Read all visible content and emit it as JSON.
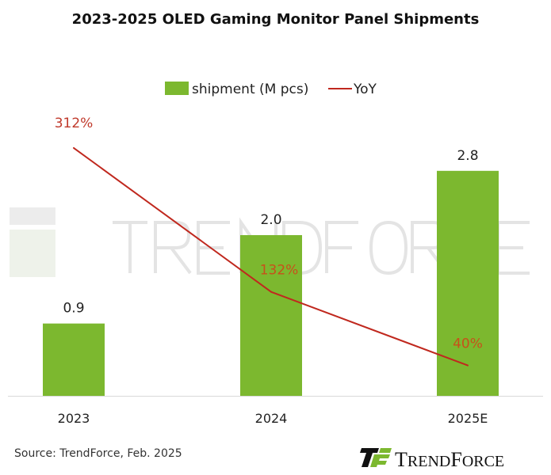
{
  "chart_data": {
    "type": "bar+line",
    "title": "2023-2025 OLED Gaming Monitor Panel Shipments",
    "categories": [
      "2023",
      "2024",
      "2025E"
    ],
    "series": [
      {
        "name": "shipment (M pcs)",
        "type": "bar",
        "values": [
          0.9,
          2.0,
          2.8
        ],
        "labels": [
          "0.9",
          "2.0",
          "2.8"
        ],
        "color": "#7cb82f"
      },
      {
        "name": "YoY",
        "type": "line",
        "values": [
          312,
          132,
          40
        ],
        "labels": [
          "312%",
          "132%",
          "40%"
        ],
        "color": "#c0281e"
      }
    ],
    "legend": "top",
    "grid": false
  },
  "source": "Source: TrendForce, Feb. 2025",
  "watermark": "TRENDFORCE",
  "logo": "TRENDFORCE"
}
